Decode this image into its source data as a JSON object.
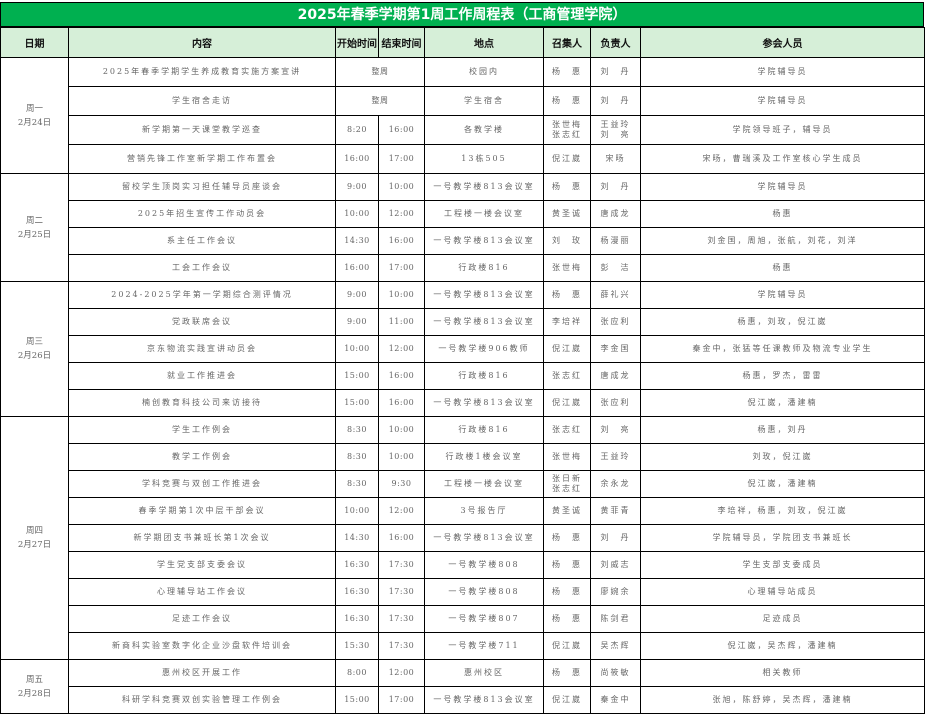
{
  "title": "2025年春季学期第1周工作周程表（工商管理学院）",
  "colors": {
    "title_bg": "#00b050",
    "header_bg": "#d6efd8"
  },
  "headers": [
    "日期",
    "内容",
    "开始时间",
    "结束时间",
    "地点",
    "召集人",
    "负责人",
    "参会人员"
  ],
  "days": [
    {
      "weekday": "周一",
      "date": "2月24日",
      "rows": [
        {
          "content": "2025年春季学期学生养成教育实施方案宣讲",
          "time_span": "整周",
          "location": "校园内",
          "convener": "杨　惠",
          "responsible": "刘　丹",
          "attendees": "学院辅导员"
        },
        {
          "content": "学生宿舍走访",
          "time_span": "整周",
          "location": "学生宿舍",
          "convener": "杨　惠",
          "responsible": "刘　丹",
          "attendees": "学院辅导员"
        },
        {
          "content": "新学期第一天课堂教学巡查",
          "start": "8:20",
          "end": "16:00",
          "location": "各教学楼",
          "convener": "张世梅\n张志红",
          "responsible": "王益玲\n刘　亮",
          "attendees": "学院领导班子，辅导员"
        },
        {
          "content": "营销先锋工作室新学期工作布置会",
          "start": "16:00",
          "end": "17:00",
          "location": "13栋505",
          "convener": "倪江崴",
          "responsible": "宋旸",
          "attendees": "宋旸，曹瑞溪及工作室核心学生成员"
        }
      ]
    },
    {
      "weekday": "周二",
      "date": "2月25日",
      "rows": [
        {
          "content": "留校学生顶岗实习担任辅导员座谈会",
          "start": "9:00",
          "end": "10:00",
          "location": "一号教学楼813会议室",
          "convener": "杨　惠",
          "responsible": "刘　丹",
          "attendees": "学院辅导员"
        },
        {
          "content": "2025年招生宣传工作动员会",
          "start": "10:00",
          "end": "12:00",
          "location": "工程楼一楼会议室",
          "convener": "黄圣诚",
          "responsible": "唐成龙",
          "attendees": "杨惠"
        },
        {
          "content": "系主任工作会议",
          "start": "14:30",
          "end": "16:00",
          "location": "一号教学楼813会议室",
          "convener": "刘　玫",
          "responsible": "杨漫丽",
          "attendees": "刘金国，周旭，张航，刘花，刘洋"
        },
        {
          "content": "工会工作会议",
          "start": "16:00",
          "end": "17:00",
          "location": "行政楼816",
          "convener": "张世梅",
          "responsible": "彭　洁",
          "attendees": "杨惠"
        }
      ]
    },
    {
      "weekday": "周三",
      "date": "2月26日",
      "rows": [
        {
          "content": "2024-2025学年第一学期综合测评情况",
          "start": "9:00",
          "end": "10:00",
          "location": "一号教学楼813会议室",
          "convener": "杨　惠",
          "responsible": "薛礼兴",
          "attendees": "学院辅导员"
        },
        {
          "content": "党政联席会议",
          "start": "9:00",
          "end": "11:00",
          "location": "一号教学楼813会议室",
          "convener": "李培祥",
          "responsible": "张应利",
          "attendees": "杨惠，刘玫，倪江崴"
        },
        {
          "content": "京东物流实践宣讲动员会",
          "start": "10:00",
          "end": "12:00",
          "location": "一号教学楼906教师",
          "convener": "倪江崴",
          "responsible": "李金国",
          "attendees": "秦金中，张猛等任课教师及物流专业学生"
        },
        {
          "content": "就业工作推进会",
          "start": "15:00",
          "end": "16:00",
          "location": "行政楼816",
          "convener": "张志红",
          "responsible": "唐成龙",
          "attendees": "杨惠，罗杰，雷雷"
        },
        {
          "content": "楠创教育科技公司来访接待",
          "start": "15:00",
          "end": "16:00",
          "location": "一号教学楼813会议室",
          "convener": "倪江崴",
          "responsible": "张应利",
          "attendees": "倪江崴，潘建楠"
        }
      ]
    },
    {
      "weekday": "周四",
      "date": "2月27日",
      "rows": [
        {
          "content": "学生工作例会",
          "start": "8:30",
          "end": "10:00",
          "location": "行政楼816",
          "convener": "张志红",
          "responsible": "刘　亮",
          "attendees": "杨惠，刘丹"
        },
        {
          "content": "教学工作例会",
          "start": "8:30",
          "end": "10:00",
          "location": "行政楼1楼会议室",
          "convener": "张世梅",
          "responsible": "王益玲",
          "attendees": "刘玫，倪江崴"
        },
        {
          "content": "学科竞赛与双创工作推进会",
          "start": "8:30",
          "end": "9:30",
          "location": "工程楼一楼会议室",
          "convener": "张日新\n张志红",
          "responsible": "余永龙",
          "attendees": "倪江崴，潘建楠"
        },
        {
          "content": "春季学期第1次中层干部会议",
          "start": "10:00",
          "end": "12:00",
          "location": "3号报告厅",
          "convener": "黄圣诚",
          "responsible": "黄菲青",
          "attendees": "李培祥，杨惠，刘玫，倪江崴"
        },
        {
          "content": "新学期团支书兼班长第1次会议",
          "start": "14:30",
          "end": "16:00",
          "location": "一号教学楼813会议室",
          "convener": "杨　惠",
          "responsible": "刘　丹",
          "attendees": "学院辅导员，学院团支书兼班长"
        },
        {
          "content": "学生党支部支委会议",
          "start": "16:30",
          "end": "17:30",
          "location": "一号教学楼808",
          "convener": "杨　惠",
          "responsible": "刘威志",
          "attendees": "学生支部支委成员"
        },
        {
          "content": "心理辅导站工作会议",
          "start": "16:30",
          "end": "17:30",
          "location": "一号教学楼808",
          "convener": "杨　惠",
          "responsible": "廖婉余",
          "attendees": "心理辅导站成员"
        },
        {
          "content": "足迹工作会议",
          "start": "16:30",
          "end": "17:30",
          "location": "一号教学楼807",
          "convener": "杨　惠",
          "responsible": "陈剑君",
          "attendees": "足迹成员"
        },
        {
          "content": "新商科实验室数字化企业沙盘软件培训会",
          "start": "15:30",
          "end": "17:30",
          "location": "一号教学楼711",
          "convener": "倪江崴",
          "responsible": "吴杰辉",
          "attendees": "倪江崴，吴杰辉，潘建楠"
        }
      ]
    },
    {
      "weekday": "周五",
      "date": "2月28日",
      "rows": [
        {
          "content": "惠州校区开展工作",
          "start": "8:00",
          "end": "12:00",
          "location": "惠州校区",
          "convener": "杨　惠",
          "responsible": "尚筱敏",
          "attendees": "相关教师"
        },
        {
          "content": "科研学科竞赛双创实验管理工作例会",
          "start": "15:00",
          "end": "17:00",
          "location": "一号教学楼813会议室",
          "convener": "倪江崴",
          "responsible": "秦金中",
          "attendees": "张旭，陈舒婷，吴杰辉，潘建楠"
        }
      ]
    }
  ]
}
